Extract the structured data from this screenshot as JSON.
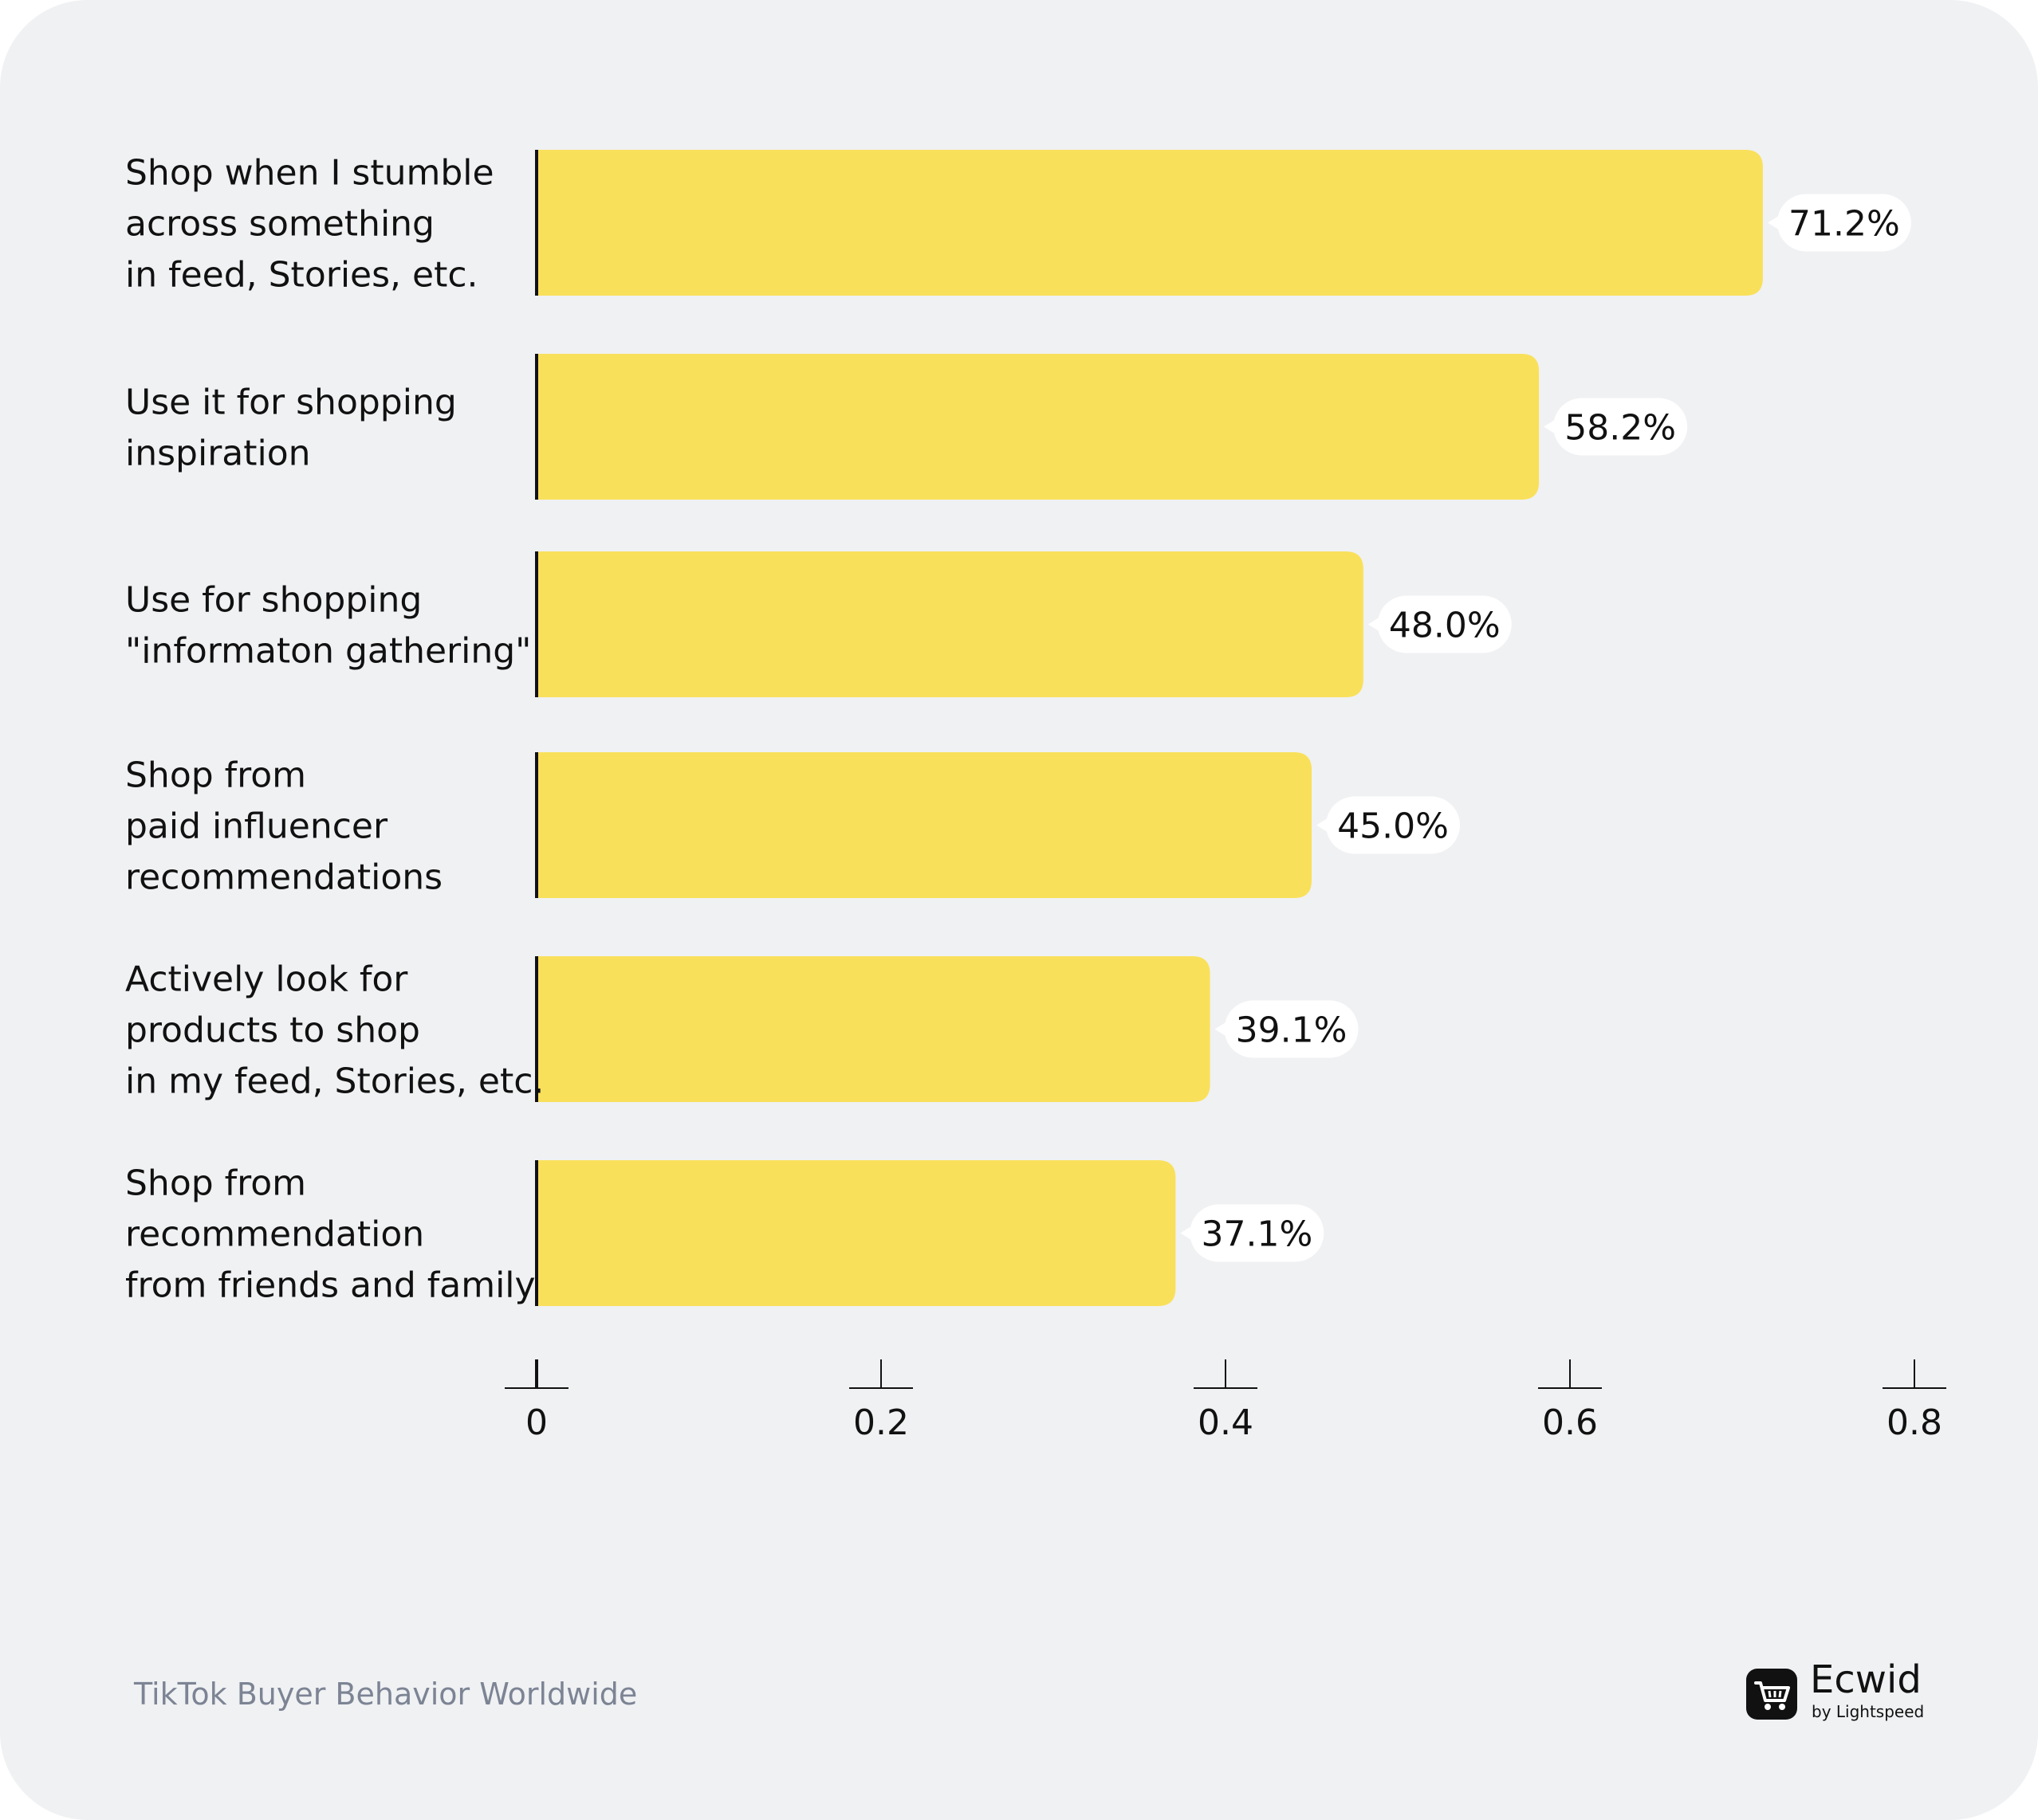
{
  "chart_data": {
    "type": "bar",
    "orientation": "horizontal",
    "categories": [
      [
        "Shop when I stumble",
        "across something",
        "in feed, Stories, etc."
      ],
      [
        "Use it for shopping",
        "inspiration"
      ],
      [
        "Use for shopping",
        "\"informaton gathering\""
      ],
      [
        "Shop from",
        "paid influencer",
        "recommendations"
      ],
      [
        "Actively look for",
        "products to shop",
        "in my feed, Stories, etc."
      ],
      [
        "Shop from",
        "recommendation",
        "from friends and family"
      ]
    ],
    "values": [
      0.712,
      0.582,
      0.48,
      0.45,
      0.391,
      0.371
    ],
    "data_labels": [
      "71.2%",
      "58.2%",
      "48.0%",
      "45.0%",
      "39.1%",
      "37.1%"
    ],
    "x_ticks": [
      0,
      0.2,
      0.4,
      0.6,
      0.8
    ],
    "x_tick_labels": [
      "0",
      "0.2",
      "0.4",
      "0.6",
      "0.8"
    ],
    "xlim": [
      0,
      0.8
    ],
    "grid": false,
    "bar_color": "#f9e05a",
    "axis_color": "#111111",
    "label_bg_color": "#ffffff"
  },
  "footer": {
    "title": "TikTok Buyer Behavior Worldwide"
  },
  "logo": {
    "icon": "shopping-cart-icon",
    "name": "Ecwid",
    "tagline": "by Lightspeed"
  },
  "colors": {
    "background": "#f0f1f3",
    "footer_text": "#7c8494"
  }
}
